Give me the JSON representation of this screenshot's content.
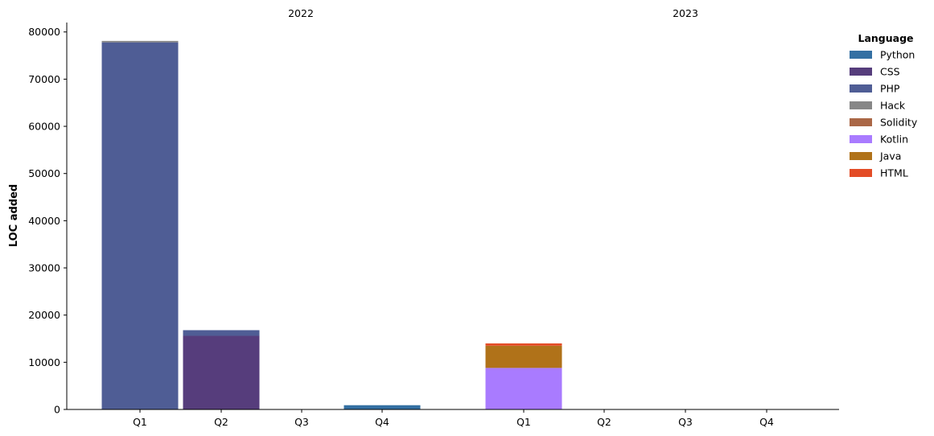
{
  "chart_data": {
    "type": "bar",
    "stacked": true,
    "groups": [
      {
        "label": "2022",
        "categories": [
          "Q1",
          "Q2",
          "Q3",
          "Q4"
        ]
      },
      {
        "label": "2023",
        "categories": [
          "Q1",
          "Q2",
          "Q3",
          "Q4"
        ]
      }
    ],
    "ylabel": "LOC added",
    "ylim": [
      0,
      82000
    ],
    "yticks": [
      0,
      10000,
      20000,
      30000,
      40000,
      50000,
      60000,
      70000,
      80000
    ],
    "legend": {
      "title": "Language",
      "placement": "top-right"
    },
    "series": [
      {
        "name": "Python",
        "color": "#3470a3",
        "values": [
          0,
          0,
          0,
          900,
          0,
          0,
          0,
          0
        ]
      },
      {
        "name": "CSS",
        "color": "#563d7c",
        "values": [
          0,
          15600,
          0,
          0,
          0,
          0,
          0,
          0
        ]
      },
      {
        "name": "PHP",
        "color": "#4f5d95",
        "values": [
          77800,
          1200,
          0,
          0,
          0,
          0,
          0,
          0
        ]
      },
      {
        "name": "Hack",
        "color": "#878787",
        "values": [
          300,
          0,
          0,
          0,
          0,
          0,
          0,
          0
        ]
      },
      {
        "name": "Solidity",
        "color": "#aa6746",
        "values": [
          0,
          0,
          0,
          0,
          0,
          0,
          0,
          0
        ]
      },
      {
        "name": "Kotlin",
        "color": "#a97bff",
        "values": [
          0,
          0,
          0,
          0,
          8800,
          0,
          0,
          0
        ]
      },
      {
        "name": "Java",
        "color": "#b07219",
        "values": [
          0,
          0,
          0,
          0,
          4700,
          0,
          0,
          0
        ]
      },
      {
        "name": "HTML",
        "color": "#e34c26",
        "values": [
          0,
          0,
          0,
          0,
          500,
          0,
          0,
          0
        ]
      }
    ]
  }
}
